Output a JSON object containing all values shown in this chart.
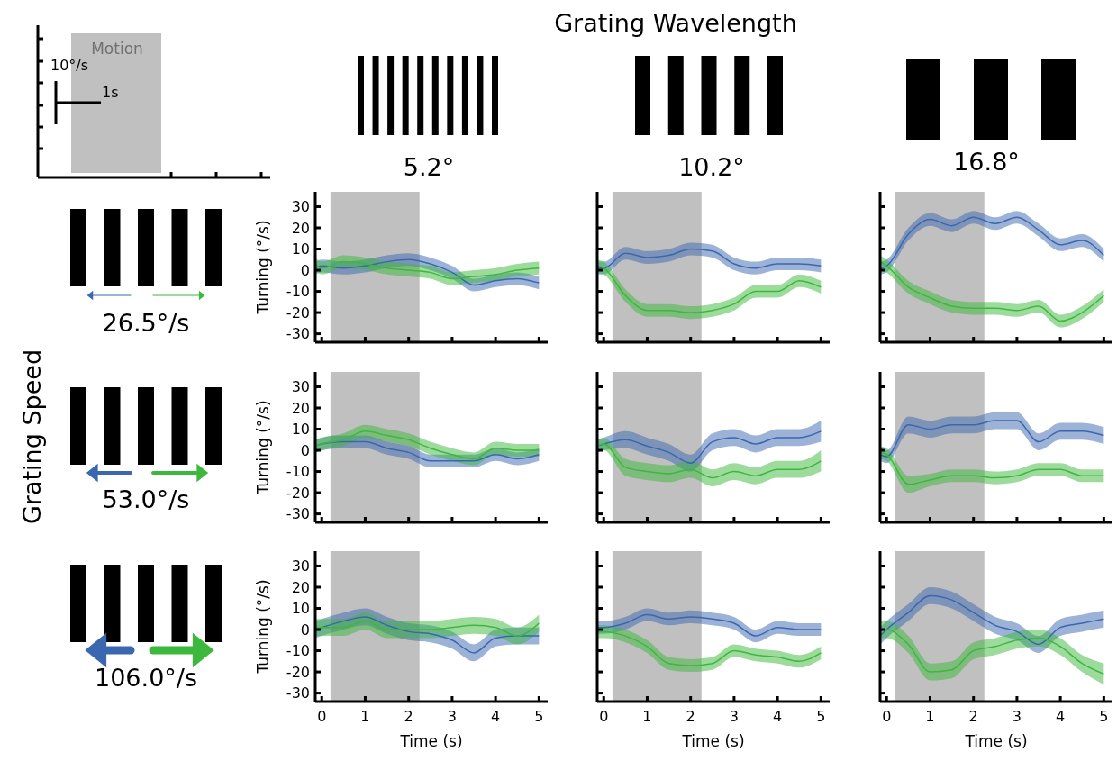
{
  "chart_data": [
    {
      "type": "other",
      "annotations": [
        "Motion",
        "10°/s",
        "1s",
        "Grating Wavelength",
        "5.2°",
        "10.2°",
        "16.8°",
        "Grating Speed",
        "26.5°/s",
        "53.0°/s",
        "106.0°/s"
      ]
    },
    {
      "type": "line",
      "x": [
        -0.15,
        0,
        0.5,
        1,
        1.5,
        2,
        2.5,
        3,
        3.5,
        4,
        4.5,
        5
      ],
      "xlim": [
        -0.15,
        5.2
      ],
      "xticks": [
        0,
        1,
        2,
        3,
        4,
        5
      ],
      "ylim": [
        -34,
        37
      ],
      "yticks": [
        -30,
        -20,
        -10,
        0,
        10,
        20,
        30
      ],
      "ylabel": "Turning (°/s)",
      "tick_labels": "y",
      "bands": [
        {
          "axis": "x",
          "from": 0.2,
          "to": 2.25,
          "color": "#c0c0c0"
        }
      ],
      "series": [
        {
          "color": "#3a67b0",
          "values": [
            1,
            2,
            1,
            2,
            4,
            5,
            3,
            -1,
            -7,
            -5,
            -4,
            -6
          ],
          "lower": [
            -2,
            -1,
            -2,
            -1,
            1,
            2,
            0,
            -4,
            -10,
            -8,
            -7,
            -9
          ],
          "upper": [
            4,
            5,
            4,
            5,
            7,
            8,
            6,
            2,
            -4,
            -2,
            -1,
            -3
          ]
        },
        {
          "color": "#3cb83c",
          "values": [
            3,
            1,
            4,
            3,
            1,
            0,
            -1,
            -4,
            -3,
            -2,
            0,
            1
          ],
          "lower": [
            0,
            -2,
            1,
            0,
            -2,
            -3,
            -4,
            -7,
            -6,
            -5,
            -3,
            -2
          ],
          "upper": [
            6,
            4,
            7,
            6,
            4,
            3,
            2,
            -1,
            0,
            1,
            3,
            4
          ]
        }
      ]
    },
    {
      "type": "line",
      "x": [
        -0.15,
        0,
        0.5,
        1,
        1.5,
        2,
        2.5,
        3,
        3.5,
        4,
        4.5,
        5
      ],
      "xlim": [
        -0.15,
        5.2
      ],
      "xticks": [
        0,
        1,
        2,
        3,
        4,
        5
      ],
      "ylim": [
        -34,
        37
      ],
      "yticks": [
        -30,
        -20,
        -10,
        0,
        10,
        20,
        30
      ],
      "tick_labels": false,
      "bands": [
        {
          "axis": "x",
          "from": 0.2,
          "to": 2.25,
          "color": "#c0c0c0"
        }
      ],
      "series": [
        {
          "color": "#3a67b0",
          "values": [
            1,
            1,
            8,
            6,
            7,
            10,
            9,
            3,
            1,
            3,
            3,
            2
          ],
          "lower": [
            -2,
            -2,
            5,
            3,
            4,
            7,
            6,
            0,
            -2,
            0,
            0,
            -1
          ],
          "upper": [
            4,
            4,
            11,
            9,
            10,
            13,
            12,
            6,
            4,
            6,
            6,
            5
          ]
        },
        {
          "color": "#3cb83c",
          "values": [
            2,
            1,
            -12,
            -19,
            -19,
            -20,
            -19,
            -16,
            -10,
            -10,
            -5,
            -8
          ],
          "lower": [
            -1,
            -2,
            -15,
            -22,
            -22,
            -23,
            -22,
            -19,
            -13,
            -13,
            -8,
            -11
          ],
          "upper": [
            5,
            4,
            -9,
            -16,
            -16,
            -17,
            -16,
            -13,
            -7,
            -7,
            -2,
            -5
          ]
        }
      ]
    },
    {
      "type": "line",
      "x": [
        -0.15,
        0,
        0.5,
        1,
        1.5,
        2,
        2.5,
        3,
        3.5,
        4,
        4.5,
        5
      ],
      "xlim": [
        -0.15,
        5.2
      ],
      "xticks": [
        0,
        1,
        2,
        3,
        4,
        5
      ],
      "ylim": [
        -34,
        37
      ],
      "yticks": [
        -30,
        -20,
        -10,
        0,
        10,
        20,
        30
      ],
      "tick_labels": false,
      "bands": [
        {
          "axis": "x",
          "from": 0.2,
          "to": 2.25,
          "color": "#c0c0c0"
        }
      ],
      "series": [
        {
          "color": "#3a67b0",
          "values": [
            1,
            2,
            17,
            24,
            21,
            25,
            22,
            25,
            19,
            12,
            14,
            7
          ],
          "lower": [
            -2,
            -1,
            14,
            21,
            18,
            22,
            19,
            22,
            16,
            9,
            11,
            4
          ],
          "upper": [
            4,
            5,
            20,
            27,
            24,
            28,
            25,
            28,
            22,
            15,
            17,
            10
          ]
        },
        {
          "color": "#3cb83c",
          "values": [
            4,
            2,
            -8,
            -13,
            -17,
            -18,
            -18,
            -19,
            -17,
            -24,
            -20,
            -12
          ],
          "lower": [
            1,
            -1,
            -11,
            -16,
            -20,
            -21,
            -21,
            -22,
            -20,
            -27,
            -23,
            -15
          ],
          "upper": [
            7,
            5,
            -5,
            -10,
            -14,
            -15,
            -15,
            -16,
            -14,
            -21,
            -17,
            -9
          ]
        }
      ]
    },
    {
      "type": "line",
      "x": [
        -0.15,
        0,
        0.5,
        1,
        1.5,
        2,
        2.5,
        3,
        3.5,
        4,
        4.5,
        5
      ],
      "xlim": [
        -0.15,
        5.2
      ],
      "xticks": [
        0,
        1,
        2,
        3,
        4,
        5
      ],
      "ylim": [
        -34,
        37
      ],
      "yticks": [
        -30,
        -20,
        -10,
        0,
        10,
        20,
        30
      ],
      "ylabel": "Turning (°/s)",
      "tick_labels": "y",
      "bands": [
        {
          "axis": "x",
          "from": 0.2,
          "to": 2.25,
          "color": "#c0c0c0"
        }
      ],
      "series": [
        {
          "color": "#3a67b0",
          "values": [
            2,
            3,
            4,
            4,
            1,
            -1,
            -5,
            -5,
            -5,
            -2,
            -4,
            -2
          ],
          "lower": [
            -1,
            0,
            1,
            1,
            -2,
            -4,
            -8,
            -8,
            -8,
            -5,
            -7,
            -5
          ],
          "upper": [
            5,
            6,
            7,
            7,
            4,
            2,
            -2,
            -2,
            -2,
            1,
            -1,
            1
          ]
        },
        {
          "color": "#3cb83c",
          "values": [
            2,
            3,
            5,
            9,
            7,
            5,
            1,
            -2,
            -4,
            1,
            0,
            0
          ],
          "lower": [
            -1,
            0,
            2,
            6,
            4,
            2,
            -2,
            -5,
            -7,
            -2,
            -3,
            -3
          ],
          "upper": [
            5,
            6,
            8,
            12,
            10,
            8,
            4,
            1,
            -1,
            4,
            3,
            3
          ]
        }
      ]
    },
    {
      "type": "line",
      "x": [
        -0.15,
        0,
        0.5,
        1,
        1.5,
        2,
        2.5,
        3,
        3.5,
        4,
        4.5,
        5
      ],
      "xlim": [
        -0.15,
        5.2
      ],
      "xticks": [
        0,
        1,
        2,
        3,
        4,
        5
      ],
      "ylim": [
        -34,
        37
      ],
      "yticks": [
        -30,
        -20,
        -10,
        0,
        10,
        20,
        30
      ],
      "tick_labels": false,
      "bands": [
        {
          "axis": "x",
          "from": 0.2,
          "to": 2.25,
          "color": "#c0c0c0"
        }
      ],
      "series": [
        {
          "color": "#3a67b0",
          "values": [
            2,
            3,
            5,
            2,
            -1,
            -6,
            4,
            6,
            3,
            6,
            6,
            9
          ],
          "lower": [
            -1,
            0,
            1,
            -2,
            -5,
            -10,
            0,
            2,
            -1,
            2,
            2,
            4
          ],
          "upper": [
            5,
            6,
            9,
            6,
            3,
            -2,
            8,
            10,
            7,
            10,
            10,
            14
          ]
        },
        {
          "color": "#3cb83c",
          "values": [
            2,
            3,
            -8,
            -10,
            -11,
            -9,
            -13,
            -10,
            -12,
            -9,
            -9,
            -5
          ],
          "lower": [
            -1,
            0,
            -12,
            -14,
            -15,
            -13,
            -17,
            -14,
            -16,
            -13,
            -13,
            -10
          ],
          "upper": [
            5,
            6,
            -4,
            -6,
            -7,
            -5,
            -9,
            -6,
            -8,
            -5,
            -5,
            0
          ]
        }
      ]
    },
    {
      "type": "line",
      "x": [
        -0.15,
        0,
        0.5,
        1,
        1.5,
        2,
        2.5,
        3,
        3.5,
        4,
        4.5,
        5
      ],
      "xlim": [
        -0.15,
        5.2
      ],
      "xticks": [
        0,
        1,
        2,
        3,
        4,
        5
      ],
      "ylim": [
        -34,
        37
      ],
      "yticks": [
        -30,
        -20,
        -10,
        0,
        10,
        20,
        30
      ],
      "tick_labels": false,
      "bands": [
        {
          "axis": "x",
          "from": 0.2,
          "to": 2.25,
          "color": "#c0c0c0"
        }
      ],
      "series": [
        {
          "color": "#3a67b0",
          "values": [
            -2,
            -3,
            12,
            10,
            12,
            12,
            14,
            14,
            4,
            9,
            9,
            7
          ],
          "lower": [
            -5,
            -6,
            8,
            6,
            8,
            8,
            10,
            10,
            0,
            5,
            5,
            3
          ],
          "upper": [
            1,
            0,
            16,
            14,
            16,
            16,
            18,
            18,
            8,
            13,
            13,
            11
          ]
        },
        {
          "color": "#3cb83c",
          "values": [
            -1,
            -2,
            -16,
            -14,
            -12,
            -12,
            -13,
            -12,
            -9,
            -9,
            -12,
            -12
          ],
          "lower": [
            -4,
            -5,
            -20,
            -17,
            -15,
            -15,
            -16,
            -15,
            -12,
            -12,
            -15,
            -15
          ],
          "upper": [
            2,
            1,
            -12,
            -11,
            -9,
            -9,
            -10,
            -9,
            -6,
            -6,
            -9,
            -9
          ]
        }
      ]
    },
    {
      "type": "line",
      "x": [
        -0.15,
        0,
        0.5,
        1,
        1.5,
        2,
        2.5,
        3,
        3.5,
        4,
        4.5,
        5
      ],
      "xlim": [
        -0.15,
        5.2
      ],
      "xticks": [
        0,
        1,
        2,
        3,
        4,
        5
      ],
      "ylim": [
        -34,
        37
      ],
      "yticks": [
        -30,
        -20,
        -10,
        0,
        10,
        20,
        30
      ],
      "ylabel": "Turning (°/s)",
      "xlabel": "Time (s)",
      "bands": [
        {
          "axis": "x",
          "from": 0.2,
          "to": 2.25,
          "color": "#c0c0c0"
        }
      ],
      "series": [
        {
          "color": "#3a67b0",
          "values": [
            0,
            1,
            4,
            6,
            2,
            -1,
            -2,
            -5,
            -11,
            -4,
            -3,
            -3
          ],
          "lower": [
            -4,
            -3,
            0,
            2,
            -2,
            -5,
            -6,
            -9,
            -15,
            -8,
            -7,
            -7
          ],
          "upper": [
            4,
            5,
            8,
            10,
            6,
            3,
            2,
            -1,
            -7,
            0,
            1,
            1
          ]
        },
        {
          "color": "#3cb83c",
          "values": [
            1,
            1,
            1,
            4,
            0,
            0,
            0,
            1,
            2,
            1,
            -3,
            3
          ],
          "lower": [
            -3,
            -3,
            -3,
            0,
            -4,
            -4,
            -4,
            -3,
            -2,
            -3,
            -7,
            -1
          ],
          "upper": [
            5,
            5,
            5,
            8,
            4,
            4,
            4,
            5,
            6,
            5,
            1,
            7
          ]
        }
      ]
    },
    {
      "type": "line",
      "x": [
        -0.15,
        0,
        0.5,
        1,
        1.5,
        2,
        2.5,
        3,
        3.5,
        4,
        4.5,
        5
      ],
      "xlim": [
        -0.15,
        5.2
      ],
      "xticks": [
        0,
        1,
        2,
        3,
        4,
        5
      ],
      "ylim": [
        -34,
        37
      ],
      "yticks": [
        -30,
        -20,
        -10,
        0,
        10,
        20,
        30
      ],
      "xlabel": "Time (s)",
      "tick_labels": "x",
      "bands": [
        {
          "axis": "x",
          "from": 0.2,
          "to": 2.25,
          "color": "#c0c0c0"
        }
      ],
      "series": [
        {
          "color": "#3a67b0",
          "values": [
            1,
            1,
            3,
            7,
            5,
            6,
            5,
            3,
            -3,
            1,
            0,
            0
          ],
          "lower": [
            -2,
            -2,
            0,
            4,
            2,
            3,
            2,
            0,
            -6,
            -2,
            -3,
            -3
          ],
          "upper": [
            4,
            4,
            6,
            10,
            8,
            9,
            8,
            6,
            0,
            4,
            3,
            3
          ]
        },
        {
          "color": "#3cb83c",
          "values": [
            -1,
            -1,
            -3,
            -8,
            -16,
            -17,
            -16,
            -10,
            -12,
            -13,
            -15,
            -11
          ],
          "lower": [
            -4,
            -4,
            -6,
            -11,
            -19,
            -20,
            -19,
            -13,
            -15,
            -16,
            -18,
            -14
          ],
          "upper": [
            2,
            2,
            0,
            -5,
            -13,
            -14,
            -13,
            -7,
            -9,
            -10,
            -12,
            -8
          ]
        }
      ]
    },
    {
      "type": "line",
      "x": [
        -0.15,
        0,
        0.5,
        1,
        1.5,
        2,
        2.5,
        3,
        3.5,
        4,
        4.5,
        5
      ],
      "xlim": [
        -0.15,
        5.2
      ],
      "xticks": [
        0,
        1,
        2,
        3,
        4,
        5
      ],
      "ylim": [
        -34,
        37
      ],
      "yticks": [
        -30,
        -20,
        -10,
        0,
        10,
        20,
        30
      ],
      "xlabel": "Time (s)",
      "tick_labels": "x",
      "bands": [
        {
          "axis": "x",
          "from": 0.2,
          "to": 2.25,
          "color": "#c0c0c0"
        }
      ],
      "series": [
        {
          "color": "#3a67b0",
          "values": [
            -3,
            0,
            8,
            16,
            14,
            8,
            2,
            -1,
            -7,
            1,
            3,
            5
          ],
          "lower": [
            -7,
            -4,
            4,
            12,
            10,
            4,
            -2,
            -5,
            -11,
            -3,
            -1,
            1
          ],
          "upper": [
            1,
            4,
            12,
            20,
            18,
            12,
            6,
            3,
            -3,
            5,
            7,
            9
          ]
        },
        {
          "color": "#3cb83c",
          "values": [
            0,
            0,
            -7,
            -20,
            -19,
            -10,
            -8,
            -5,
            -4,
            -8,
            -16,
            -21
          ],
          "lower": [
            -4,
            -4,
            -11,
            -24,
            -23,
            -14,
            -12,
            -9,
            -8,
            -12,
            -20,
            -26
          ],
          "upper": [
            4,
            4,
            -3,
            -16,
            -15,
            -6,
            -4,
            -1,
            0,
            -4,
            -12,
            -16
          ]
        }
      ]
    }
  ]
}
